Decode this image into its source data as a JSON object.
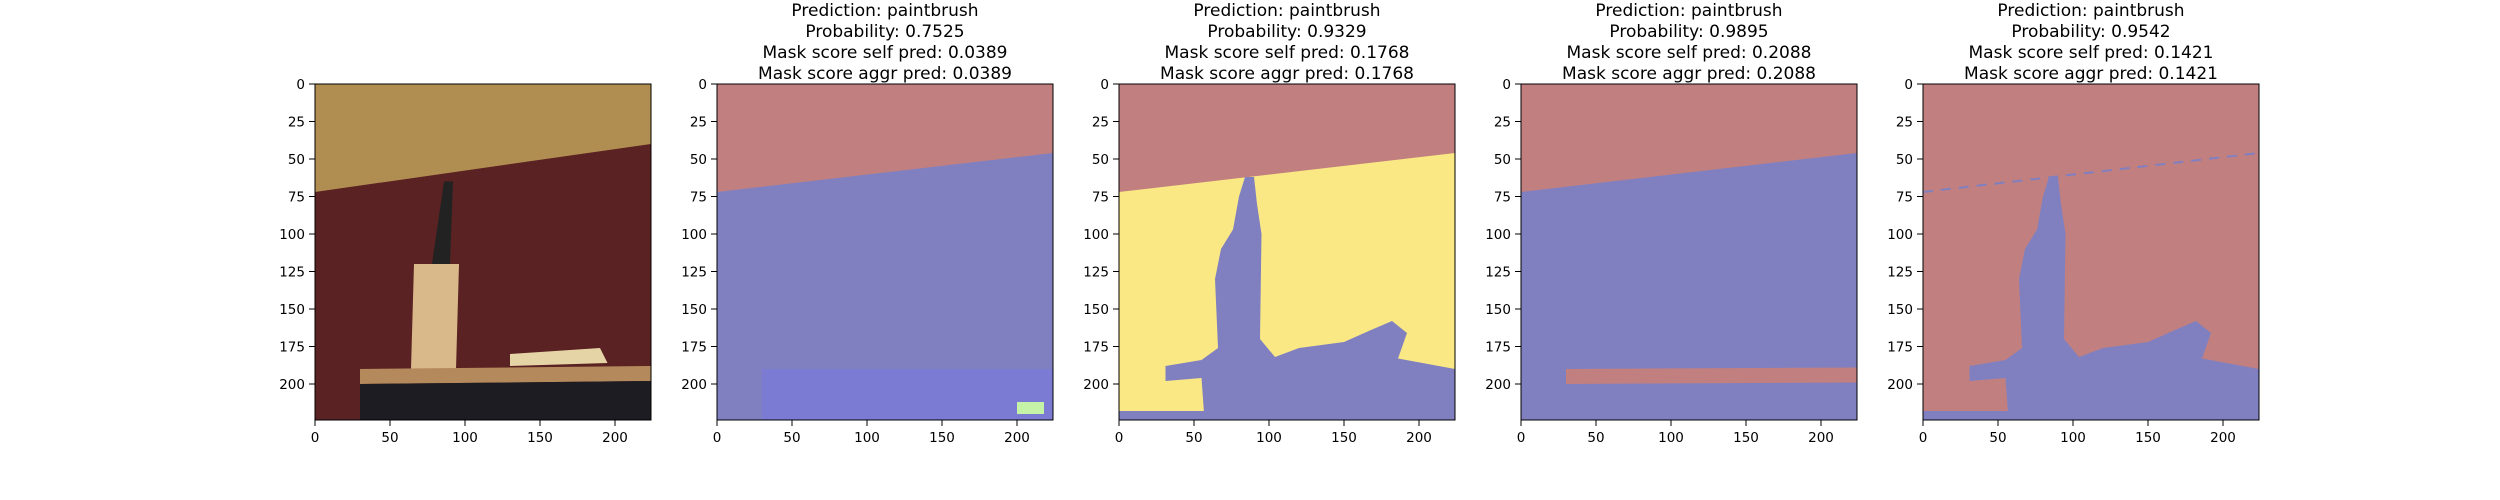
{
  "colors": {
    "mask_red": "#c17f7f",
    "mask_blue": "#8080c1",
    "mask_blue_dark": "#7b7bd4",
    "mask_yellow": "#fae885",
    "mask_green": "#c4f2a6",
    "photo_wall": "#5a2222",
    "photo_top": "#b08e52"
  },
  "chart_data": [
    {
      "type": "image",
      "title": "",
      "xlim": [
        0,
        224
      ],
      "ylim": [
        224,
        0
      ],
      "xticks": [
        0,
        50,
        100,
        150,
        200
      ],
      "yticks": [
        0,
        25,
        50,
        75,
        100,
        125,
        150,
        175,
        200
      ],
      "content": "input photograph of a paintbrush"
    },
    {
      "type": "image",
      "title_lines": [
        "Prediction: paintbrush",
        "Probability: 0.7525",
        "Mask score self pred: 0.0389",
        "Mask score aggr pred: 0.0389"
      ],
      "prediction": "paintbrush",
      "probability": 0.7525,
      "mask_score_self_pred": 0.0389,
      "mask_score_aggr_pred": 0.0389,
      "xlim": [
        0,
        224
      ],
      "ylim": [
        224,
        0
      ],
      "xticks": [
        0,
        50,
        100,
        150,
        200
      ],
      "yticks": [
        0,
        25,
        50,
        75,
        100,
        125,
        150,
        175,
        200
      ]
    },
    {
      "type": "image",
      "title_lines": [
        "Prediction: paintbrush",
        "Probability: 0.9329",
        "Mask score self pred: 0.1768",
        "Mask score aggr pred: 0.1768"
      ],
      "prediction": "paintbrush",
      "probability": 0.9329,
      "mask_score_self_pred": 0.1768,
      "mask_score_aggr_pred": 0.1768,
      "xlim": [
        0,
        224
      ],
      "ylim": [
        224,
        0
      ],
      "xticks": [
        0,
        50,
        100,
        150,
        200
      ],
      "yticks": [
        0,
        25,
        50,
        75,
        100,
        125,
        150,
        175,
        200
      ]
    },
    {
      "type": "image",
      "title_lines": [
        "Prediction: paintbrush",
        "Probability: 0.9895",
        "Mask score self pred: 0.2088",
        "Mask score aggr pred: 0.2088"
      ],
      "prediction": "paintbrush",
      "probability": 0.9895,
      "mask_score_self_pred": 0.2088,
      "mask_score_aggr_pred": 0.2088,
      "xlim": [
        0,
        224
      ],
      "ylim": [
        224,
        0
      ],
      "xticks": [
        0,
        50,
        100,
        150,
        200
      ],
      "yticks": [
        0,
        25,
        50,
        75,
        100,
        125,
        150,
        175,
        200
      ]
    },
    {
      "type": "image",
      "title_lines": [
        "Prediction: paintbrush",
        "Probability: 0.9542",
        "Mask score self pred: 0.1421",
        "Mask score aggr pred: 0.1421"
      ],
      "prediction": "paintbrush",
      "probability": 0.9542,
      "mask_score_self_pred": 0.1421,
      "mask_score_aggr_pred": 0.1421,
      "xlim": [
        0,
        224
      ],
      "ylim": [
        224,
        0
      ],
      "xticks": [
        0,
        50,
        100,
        150,
        200
      ],
      "yticks": [
        0,
        25,
        50,
        75,
        100,
        125,
        150,
        175,
        200
      ]
    }
  ]
}
